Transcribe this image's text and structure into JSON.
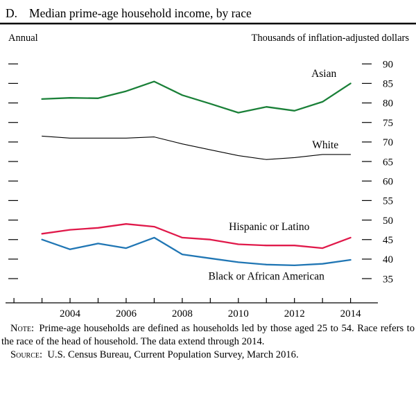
{
  "page": {
    "panel_letter": "D."
  },
  "chart_data": {
    "type": "line",
    "title": "Median prime-age household income, by race",
    "frequency_label": "Annual",
    "unit_label": "Thousands of inflation-adjusted dollars",
    "x": [
      2003,
      2004,
      2005,
      2006,
      2007,
      2008,
      2009,
      2010,
      2011,
      2012,
      2013,
      2014
    ],
    "series": [
      {
        "name": "Asian",
        "color": "#1a8038",
        "values": [
          81.0,
          81.3,
          81.2,
          83.0,
          85.5,
          82.0,
          79.8,
          77.5,
          79.0,
          78.0,
          80.3,
          85.0
        ]
      },
      {
        "name": "White",
        "color": "#000000",
        "values": [
          71.5,
          71.0,
          71.0,
          71.0,
          71.3,
          69.5,
          68.0,
          66.5,
          65.5,
          66.0,
          66.8,
          66.8
        ]
      },
      {
        "name": "Hispanic or Latino",
        "color": "#e0194a",
        "values": [
          46.5,
          47.5,
          48.0,
          49.0,
          48.3,
          45.5,
          45.0,
          43.8,
          43.5,
          43.5,
          42.8,
          45.5
        ]
      },
      {
        "name": "Black or African American",
        "color": "#2076b4",
        "values": [
          45.0,
          42.5,
          44.0,
          42.8,
          45.5,
          41.2,
          40.2,
          39.2,
          38.6,
          38.4,
          38.8,
          39.8
        ]
      }
    ],
    "yticks": [
      35,
      40,
      45,
      50,
      55,
      60,
      65,
      70,
      75,
      80,
      85,
      90
    ],
    "xticks": [
      2004,
      2006,
      2008,
      2010,
      2012,
      2014
    ],
    "ylim": [
      28.8,
      92.7
    ],
    "xlim": [
      2001.75,
      2014.85
    ],
    "grid": false,
    "legend_position": "inline-labels",
    "ytick_side": "right"
  },
  "notes": {
    "note_label": "Note:",
    "note_text": "Prime-age households are defined as households led by those aged 25 to 54. Race refers to the race of the head of household. The data extend through 2014.",
    "source_label": "Source:",
    "source_text": "U.S. Census Bureau, Current Population Survey, March 2016."
  }
}
